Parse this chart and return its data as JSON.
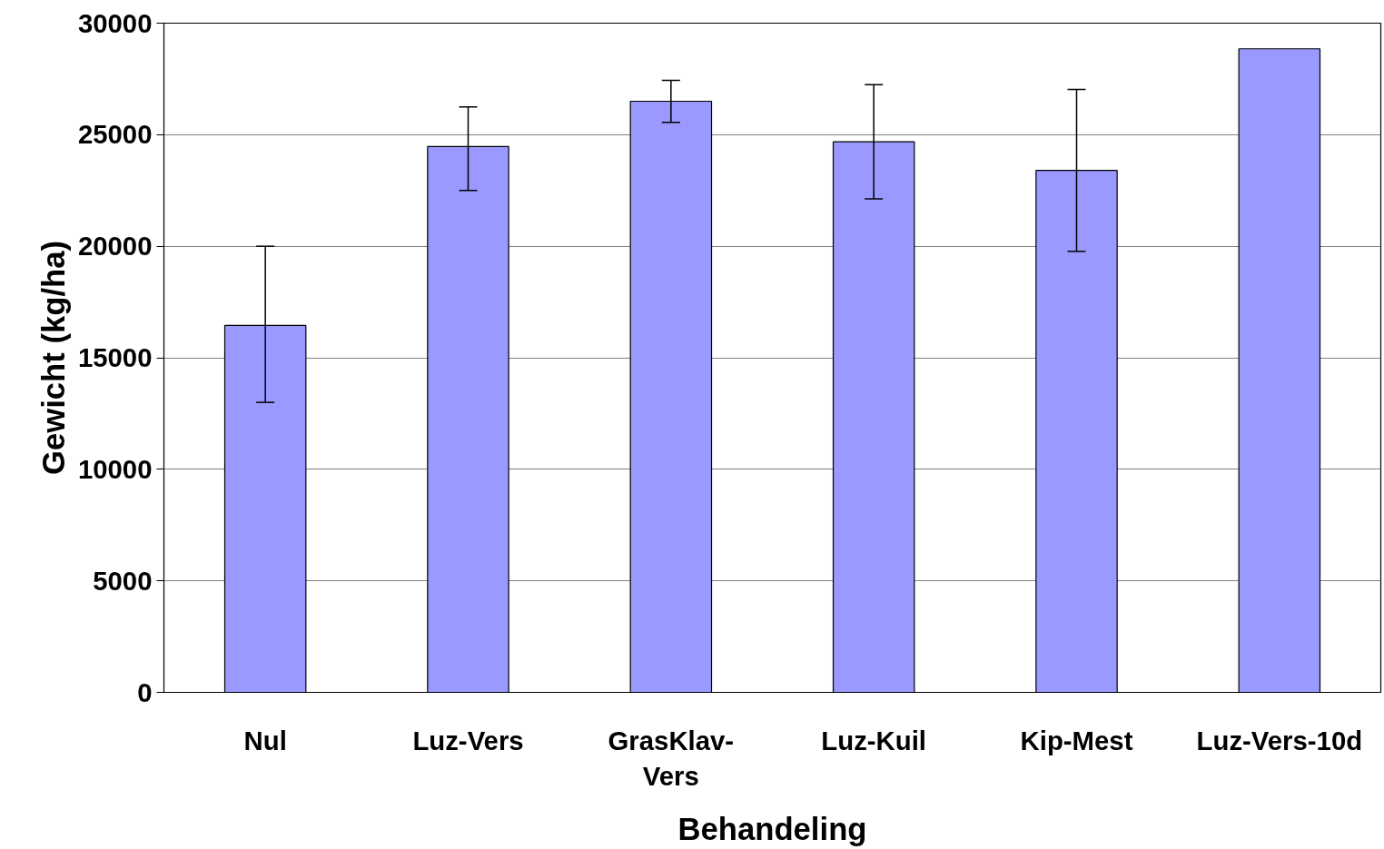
{
  "chart_data": {
    "type": "bar",
    "xlabel": "Behandeling",
    "ylabel": "Gewicht (kg/ha)",
    "categories": [
      "Nul",
      "Luz-Vers",
      "GrasKlav-Vers",
      "Luz-Kuil",
      "Kip-Mest",
      "Luz-Vers-10d"
    ],
    "values": [
      16450,
      24470,
      26500,
      24680,
      23400,
      28850
    ],
    "errors": [
      [
        13000,
        20000
      ],
      [
        22500,
        26250
      ],
      [
        25550,
        27440
      ],
      [
        22120,
        27240
      ],
      [
        19770,
        27030
      ],
      null
    ],
    "color": "#9999ff",
    "ylim": [
      0,
      30000
    ],
    "yticks": [
      0,
      5000,
      10000,
      15000,
      20000,
      25000,
      30000
    ],
    "grid": "y"
  }
}
